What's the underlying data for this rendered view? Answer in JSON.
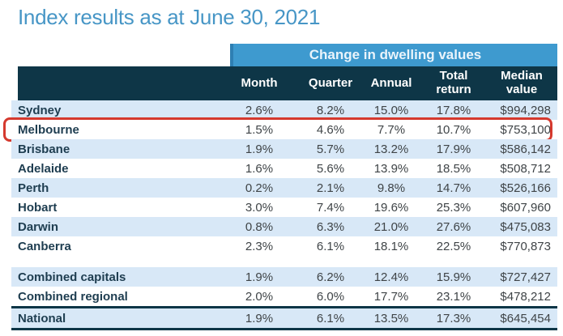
{
  "title": "Index results as at June 30, 2021",
  "band_label": "Change in dwelling values",
  "columns": {
    "month": "Month",
    "quarter": "Quarter",
    "annual": "Annual",
    "total_return": "Total return",
    "median_value": "Median value"
  },
  "rows": [
    {
      "name": "Sydney",
      "month": "2.6%",
      "quarter": "8.2%",
      "annual": "15.0%",
      "total_return": "17.8%",
      "median_value": "$994,298",
      "shade": true,
      "highlight": false,
      "gap_before": false,
      "rule_before": false,
      "rule_after": false
    },
    {
      "name": "Melbourne",
      "month": "1.5%",
      "quarter": "4.6%",
      "annual": "7.7%",
      "total_return": "10.7%",
      "median_value": "$753,100",
      "shade": false,
      "highlight": true,
      "gap_before": false,
      "rule_before": false,
      "rule_after": false
    },
    {
      "name": "Brisbane",
      "month": "1.9%",
      "quarter": "5.7%",
      "annual": "13.2%",
      "total_return": "17.9%",
      "median_value": "$586,142",
      "shade": true,
      "highlight": false,
      "gap_before": false,
      "rule_before": false,
      "rule_after": false
    },
    {
      "name": "Adelaide",
      "month": "1.6%",
      "quarter": "5.6%",
      "annual": "13.9%",
      "total_return": "18.5%",
      "median_value": "$508,712",
      "shade": false,
      "highlight": false,
      "gap_before": false,
      "rule_before": false,
      "rule_after": false
    },
    {
      "name": "Perth",
      "month": "0.2%",
      "quarter": "2.1%",
      "annual": "9.8%",
      "total_return": "14.7%",
      "median_value": "$526,166",
      "shade": true,
      "highlight": false,
      "gap_before": false,
      "rule_before": false,
      "rule_after": false
    },
    {
      "name": "Hobart",
      "month": "3.0%",
      "quarter": "7.4%",
      "annual": "19.6%",
      "total_return": "25.3%",
      "median_value": "$607,960",
      "shade": false,
      "highlight": false,
      "gap_before": false,
      "rule_before": false,
      "rule_after": false
    },
    {
      "name": "Darwin",
      "month": "0.8%",
      "quarter": "6.3%",
      "annual": "21.0%",
      "total_return": "27.6%",
      "median_value": "$475,083",
      "shade": true,
      "highlight": false,
      "gap_before": false,
      "rule_before": false,
      "rule_after": false
    },
    {
      "name": "Canberra",
      "month": "2.3%",
      "quarter": "6.1%",
      "annual": "18.1%",
      "total_return": "22.5%",
      "median_value": "$770,873",
      "shade": false,
      "highlight": false,
      "gap_before": false,
      "rule_before": false,
      "rule_after": false
    },
    {
      "name": "Combined capitals",
      "month": "1.9%",
      "quarter": "6.2%",
      "annual": "12.4%",
      "total_return": "15.9%",
      "median_value": "$727,427",
      "shade": true,
      "highlight": false,
      "gap_before": true,
      "rule_before": false,
      "rule_after": false
    },
    {
      "name": "Combined regional",
      "month": "2.0%",
      "quarter": "6.0%",
      "annual": "17.7%",
      "total_return": "23.1%",
      "median_value": "$478,212",
      "shade": false,
      "highlight": false,
      "gap_before": false,
      "rule_before": false,
      "rule_after": false
    },
    {
      "name": "National",
      "month": "1.9%",
      "quarter": "6.1%",
      "annual": "13.5%",
      "total_return": "17.3%",
      "median_value": "$645,454",
      "shade": true,
      "highlight": false,
      "gap_before": false,
      "rule_before": true,
      "rule_after": true
    }
  ],
  "colors": {
    "title_text": "#4796C6",
    "band_bg": "#3E9ACF",
    "header_bg": "#0E3647",
    "row_shade": "#D8E8F7",
    "highlight_border": "#D5392E"
  },
  "chart_data": {
    "type": "table",
    "title": "Index results as at June 30, 2021",
    "group_header": "Change in dwelling values",
    "columns": [
      "",
      "Month",
      "Quarter",
      "Annual",
      "Total return",
      "Median value"
    ],
    "rows": [
      [
        "Sydney",
        "2.6%",
        "8.2%",
        "15.0%",
        "17.8%",
        "$994,298"
      ],
      [
        "Melbourne",
        "1.5%",
        "4.6%",
        "7.7%",
        "10.7%",
        "$753,100"
      ],
      [
        "Brisbane",
        "1.9%",
        "5.7%",
        "13.2%",
        "17.9%",
        "$586,142"
      ],
      [
        "Adelaide",
        "1.6%",
        "5.6%",
        "13.9%",
        "18.5%",
        "$508,712"
      ],
      [
        "Perth",
        "0.2%",
        "2.1%",
        "9.8%",
        "14.7%",
        "$526,166"
      ],
      [
        "Hobart",
        "3.0%",
        "7.4%",
        "19.6%",
        "25.3%",
        "$607,960"
      ],
      [
        "Darwin",
        "0.8%",
        "6.3%",
        "21.0%",
        "27.6%",
        "$475,083"
      ],
      [
        "Canberra",
        "2.3%",
        "6.1%",
        "18.1%",
        "22.5%",
        "$770,873"
      ],
      [
        "Combined capitals",
        "1.9%",
        "6.2%",
        "12.4%",
        "15.9%",
        "$727,427"
      ],
      [
        "Combined regional",
        "2.0%",
        "6.0%",
        "17.7%",
        "23.1%",
        "$478,212"
      ],
      [
        "National",
        "1.9%",
        "6.1%",
        "13.5%",
        "17.3%",
        "$645,454"
      ]
    ],
    "highlighted_row": "Melbourne"
  }
}
